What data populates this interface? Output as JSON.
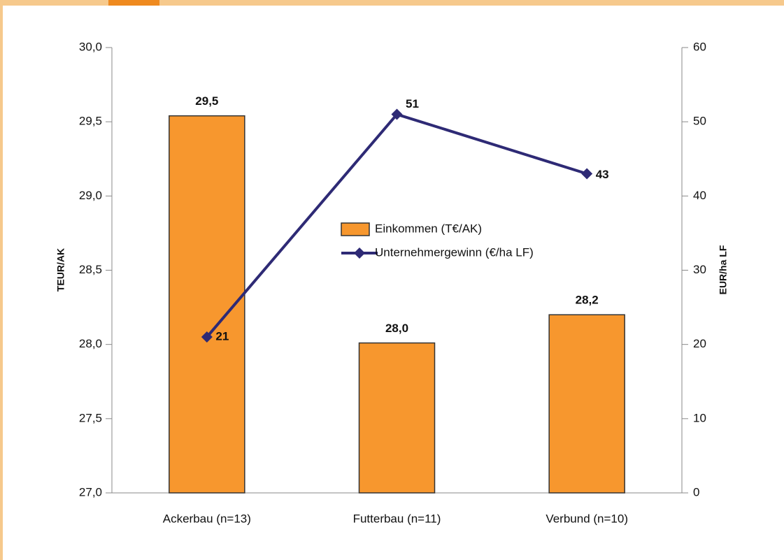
{
  "chart_data": {
    "type": "bar-line",
    "categories": [
      "Ackerbau (n=13)",
      "Futterbau (n=11)",
      "Verbund (n=10)"
    ],
    "series": [
      {
        "name": "Einkommen  (T€/AK)",
        "type": "bar",
        "color": "#f7972e",
        "values": [
          29.54,
          28.01,
          28.2
        ],
        "value_labels": [
          "29,5",
          "28,0",
          "28,2"
        ]
      },
      {
        "name": "Unternehmergewinn (€/ha LF)",
        "type": "line",
        "axis": "y2",
        "color": "#2e2a75",
        "values": [
          21,
          51,
          43
        ]
      }
    ],
    "ylabel": "TEUR/AK",
    "y2label": "EUR/ha LF",
    "ylim": [
      27,
      30
    ],
    "yticks": [
      {
        "value": 27,
        "label": "27,0"
      },
      {
        "value": 27.5,
        "label": "27,5"
      },
      {
        "value": 28,
        "label": "28,0"
      },
      {
        "value": 28.5,
        "label": "28,5"
      },
      {
        "value": 29,
        "label": "29,0"
      },
      {
        "value": 29.5,
        "label": "29,5"
      },
      {
        "value": 30,
        "label": "30,0"
      }
    ],
    "y2lim": [
      0,
      60
    ],
    "y2ticks": [
      0,
      10,
      20,
      30,
      40,
      50,
      60
    ],
    "grid": false,
    "legend": "center"
  }
}
